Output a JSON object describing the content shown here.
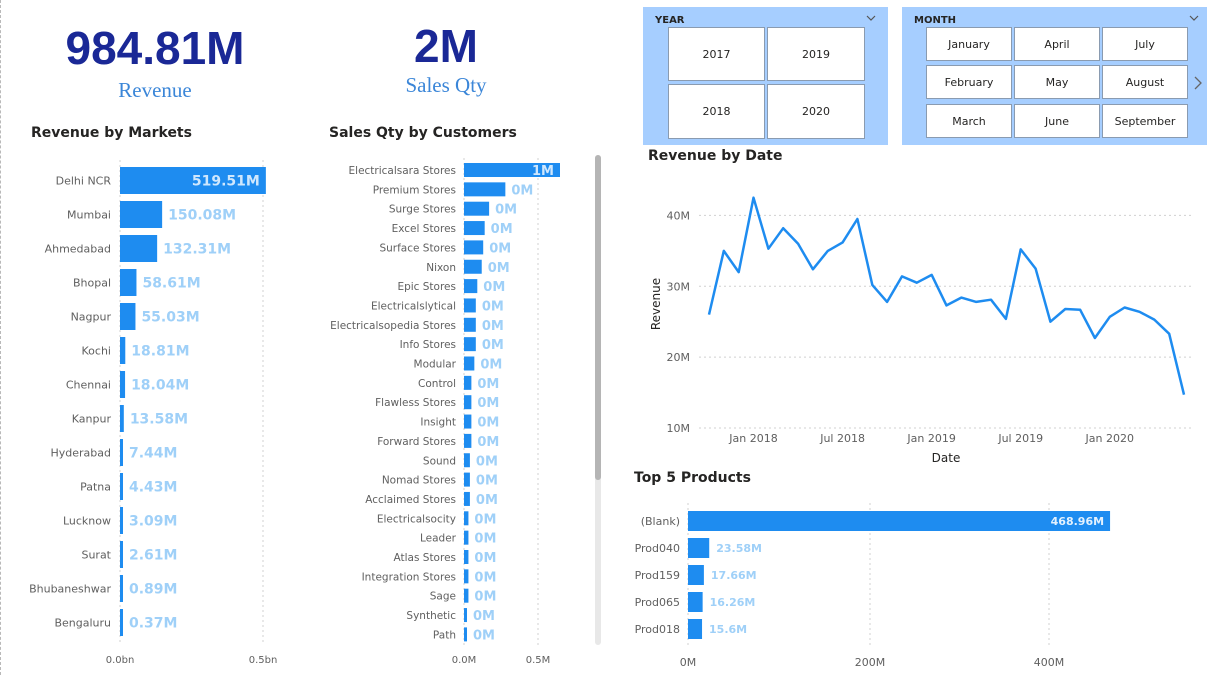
{
  "kpis": {
    "revenue_value": "984.81M",
    "revenue_label": "Revenue",
    "sales_value": "2M",
    "sales_label": "Sales Qty"
  },
  "year_slicer": {
    "title": "YEAR",
    "options": [
      "2017",
      "2019",
      "2018",
      "2020"
    ]
  },
  "month_slicer": {
    "title": "MONTH",
    "options": [
      "January",
      "April",
      "July",
      "February",
      "May",
      "August",
      "March",
      "June",
      "September"
    ]
  },
  "colors": {
    "bar": "#1e8cf0",
    "bar_label_light": "#9fd0f8",
    "line": "#1e8cf0",
    "kpi_dark": "#1a2896",
    "kpi_light": "#3b86d8",
    "slicer_bg": "#a6ceff"
  },
  "chart_data": [
    {
      "id": "markets",
      "type": "bar",
      "orientation": "horizontal",
      "title": "Revenue by Markets",
      "categories": [
        "Delhi NCR",
        "Mumbai",
        "Ahmedabad",
        "Bhopal",
        "Nagpur",
        "Kochi",
        "Chennai",
        "Kanpur",
        "Hyderabad",
        "Patna",
        "Lucknow",
        "Surat",
        "Bhubaneshwar",
        "Bengaluru"
      ],
      "values": [
        519.51,
        150.08,
        132.31,
        58.61,
        55.03,
        18.81,
        18.04,
        13.58,
        7.44,
        4.43,
        3.09,
        2.61,
        0.89,
        0.37
      ],
      "data_labels": [
        "519.51M",
        "150.08M",
        "132.31M",
        "58.61M",
        "55.03M",
        "18.81M",
        "18.04M",
        "13.58M",
        "7.44M",
        "4.43M",
        "3.09M",
        "2.61M",
        "0.89M",
        "0.37M"
      ],
      "unit": "M",
      "xlim": [
        0,
        520
      ],
      "xticks": [
        "0.0bn",
        "0.5bn"
      ]
    },
    {
      "id": "customers",
      "type": "bar",
      "orientation": "horizontal",
      "title": "Sales Qty by Customers",
      "categories": [
        "Electricalsara Stores",
        "Premium Stores",
        "Surge Stores",
        "Excel Stores",
        "Surface Stores",
        "Nixon",
        "Epic Stores",
        "Electricalslytical",
        "Electricalsopedia Stores",
        "Info Stores",
        "Modular",
        "Control",
        "Flawless Stores",
        "Insight",
        "Forward Stores",
        "Sound",
        "Nomad Stores",
        "Acclaimed Stores",
        "Electricalsocity",
        "Leader",
        "Atlas Stores",
        "Integration Stores",
        "Sage",
        "Synthetic",
        "Path"
      ],
      "values": [
        0.65,
        0.28,
        0.17,
        0.14,
        0.13,
        0.12,
        0.09,
        0.08,
        0.08,
        0.08,
        0.07,
        0.05,
        0.05,
        0.05,
        0.05,
        0.04,
        0.04,
        0.04,
        0.03,
        0.03,
        0.03,
        0.03,
        0.03,
        0.02,
        0.02
      ],
      "data_labels": [
        "1M",
        "0M",
        "0M",
        "0M",
        "0M",
        "0M",
        "0M",
        "0M",
        "0M",
        "0M",
        "0M",
        "0M",
        "0M",
        "0M",
        "0M",
        "0M",
        "0M",
        "0M",
        "0M",
        "0M",
        "0M",
        "0M",
        "0M",
        "0M",
        "0M"
      ],
      "unit": "M",
      "xlim": [
        0,
        0.65
      ],
      "xticks": [
        "0.0M",
        "0.5M"
      ]
    },
    {
      "id": "revenue_date",
      "type": "line",
      "title": "Revenue by Date",
      "xlabel": "Date",
      "ylabel": "Revenue",
      "x": [
        "2017-10",
        "2017-11",
        "2017-12",
        "2018-01",
        "2018-02",
        "2018-03",
        "2018-04",
        "2018-05",
        "2018-06",
        "2018-07",
        "2018-08",
        "2018-09",
        "2018-10",
        "2018-11",
        "2018-12",
        "2019-01",
        "2019-02",
        "2019-03",
        "2019-04",
        "2019-05",
        "2019-06",
        "2019-07",
        "2019-08",
        "2019-09",
        "2019-10",
        "2019-11",
        "2019-12",
        "2020-01",
        "2020-02",
        "2020-03",
        "2020-04",
        "2020-05",
        "2020-06"
      ],
      "values": [
        26.0,
        35.0,
        32.0,
        42.5,
        35.3,
        38.2,
        36.0,
        32.4,
        35.0,
        36.2,
        39.5,
        30.2,
        27.8,
        31.4,
        30.5,
        31.6,
        27.3,
        28.4,
        27.8,
        28.1,
        25.4,
        35.2,
        32.5,
        25.0,
        26.8,
        26.7,
        22.7,
        25.7,
        27.0,
        26.4,
        25.3,
        23.3,
        14.7
      ],
      "unit": "M",
      "ylim": [
        10,
        45
      ],
      "yticks": [
        "10M",
        "20M",
        "30M",
        "40M"
      ],
      "xticks": [
        "Jan 2018",
        "Jul 2018",
        "Jan 2019",
        "Jul 2019",
        "Jan 2020"
      ],
      "grid": true
    },
    {
      "id": "products",
      "type": "bar",
      "orientation": "horizontal",
      "title": "Top 5 Products",
      "categories": [
        "(Blank)",
        "Prod040",
        "Prod159",
        "Prod065",
        "Prod018"
      ],
      "values": [
        468.96,
        23.58,
        17.66,
        16.26,
        15.6
      ],
      "data_labels": [
        "468.96M",
        "23.58M",
        "17.66M",
        "16.26M",
        "15.6M"
      ],
      "unit": "M",
      "xlim": [
        0,
        470
      ],
      "xticks": [
        "0M",
        "200M",
        "400M"
      ]
    }
  ]
}
